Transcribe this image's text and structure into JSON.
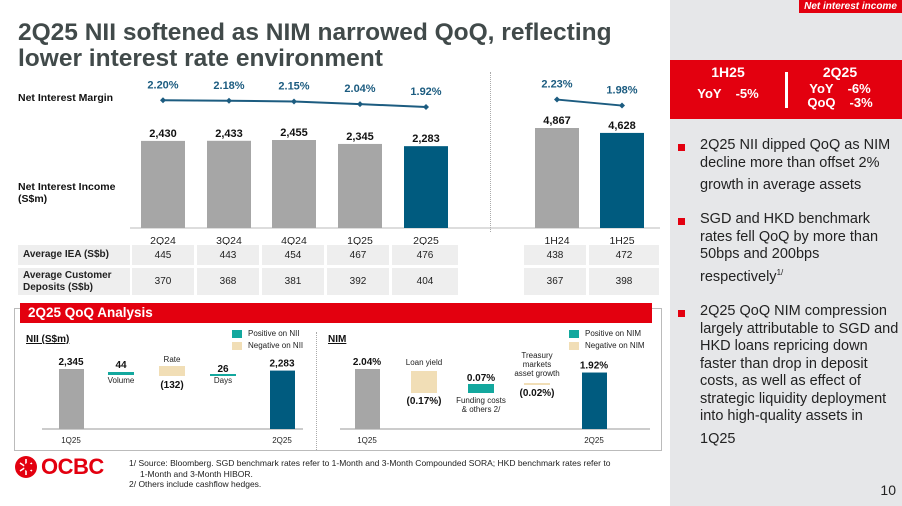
{
  "title": "2Q25 NII softened as NIM narrowed QoQ, reflecting lower interest rate environment",
  "section_tag": "Net interest income",
  "kpi": {
    "left": {
      "header": "1H25",
      "rows": [
        {
          "label": "YoY",
          "value": "-5%"
        }
      ]
    },
    "right": {
      "header": "2Q25",
      "rows": [
        {
          "label": "YoY",
          "value": "-6%"
        },
        {
          "label": "QoQ",
          "value": "-3%"
        }
      ]
    }
  },
  "bullets": [
    {
      "text": "2Q25 NII dipped QoQ as NIM decline more than offset 2% growth in average assets",
      "sup": ""
    },
    {
      "text": "SGD and HKD benchmark rates fell QoQ by more than 50bps and 200bps respectively",
      "sup": "1/"
    },
    {
      "text": "2Q25 QoQ NIM compression largely attributable to SGD and HKD loans repricing down faster than drop in deposit costs, as well as effect of strategic liquidity deployment into high-quality assets in 1Q25",
      "sup": ""
    }
  ],
  "page_number": "10",
  "labels": {
    "nim": "Net Interest Margin",
    "nii": "Net Interest Income",
    "nii_unit": "(S$m)"
  },
  "colors": {
    "red": "#e3000f",
    "gray_bar": "#a6a6a6",
    "navy_bar": "#005b7f",
    "line": "#1c5c80",
    "positive": "#13a89e",
    "negative": "#f1deb6"
  },
  "table": {
    "rows": [
      {
        "label": "Average IEA (S$b)",
        "quarterly": [
          "445",
          "443",
          "454",
          "467",
          "476"
        ],
        "half": [
          "438",
          "472"
        ]
      },
      {
        "label": "Average Customer Deposits (S$b)",
        "quarterly": [
          "370",
          "368",
          "381",
          "392",
          "404"
        ],
        "half": [
          "367",
          "398"
        ]
      }
    ]
  },
  "qoq": {
    "title": "2Q25 QoQ Analysis",
    "nii_title": "NII (S$m)",
    "nim_title": "NIM",
    "nii_legend": [
      "Positive on NII",
      "Negative on NII"
    ],
    "nim_legend": [
      "Positive on NIM",
      "Negative on NIM"
    ]
  },
  "footnotes": [
    "1/ Source: Bloomberg. SGD benchmark rates refer to 1-Month and 3-Month Compounded SORA; HKD benchmark rates refer to",
    "1-Month and 3-Month HIBOR.",
    "2/ Others include cashflow hedges."
  ],
  "logo_text": "OCBC",
  "chart_data": [
    {
      "type": "bar",
      "title": "Net Interest Income (S$m)",
      "categories": [
        "2Q24",
        "3Q24",
        "4Q24",
        "1Q25",
        "2Q25",
        "1H24",
        "1H25"
      ],
      "values": [
        2430,
        2433,
        2455,
        2345,
        2283,
        4867,
        4628
      ],
      "value_labels": [
        "2,430",
        "2,433",
        "2,455",
        "2,345",
        "2,283",
        "4,867",
        "4,628"
      ],
      "highlight": [
        "2Q25",
        "1H25"
      ]
    },
    {
      "type": "line",
      "title": "Net Interest Margin",
      "categories": [
        "2Q24",
        "3Q24",
        "4Q24",
        "1Q25",
        "2Q25",
        "1H24",
        "1H25"
      ],
      "values": [
        2.2,
        2.18,
        2.15,
        2.04,
        1.92,
        2.23,
        1.98
      ],
      "value_labels": [
        "2.20%",
        "2.18%",
        "2.15%",
        "2.04%",
        "1.92%",
        "2.23%",
        "1.98%"
      ],
      "unit": "%"
    },
    {
      "type": "bar",
      "title": "NII (S$m) waterfall",
      "steps": [
        {
          "label": "1Q25",
          "value": 2345,
          "display": "2,345",
          "kind": "total"
        },
        {
          "label": "Volume",
          "value": 44,
          "display": "44",
          "kind": "positive"
        },
        {
          "label": "Rate",
          "value": -132,
          "display": "(132)",
          "kind": "negative"
        },
        {
          "label": "Days",
          "value": 26,
          "display": "26",
          "kind": "positive"
        },
        {
          "label": "2Q25",
          "value": 2283,
          "display": "2,283",
          "kind": "total"
        }
      ]
    },
    {
      "type": "bar",
      "title": "NIM waterfall",
      "steps": [
        {
          "label": "1Q25",
          "value": 2.04,
          "display": "2.04%",
          "kind": "total"
        },
        {
          "label": "Loan yield",
          "value": -0.17,
          "display": "(0.17%)",
          "kind": "negative"
        },
        {
          "label": "Funding costs & others 2/",
          "value": 0.07,
          "display": "0.07%",
          "kind": "positive"
        },
        {
          "label": "Treasury markets asset growth",
          "value": -0.02,
          "display": "(0.02%)",
          "kind": "negative"
        },
        {
          "label": "2Q25",
          "value": 1.92,
          "display": "1.92%",
          "kind": "total"
        }
      ]
    }
  ]
}
